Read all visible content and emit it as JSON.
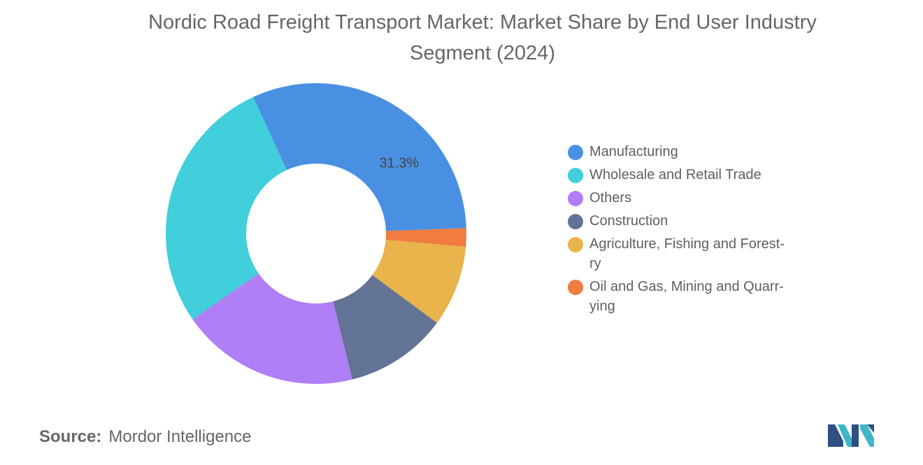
{
  "title": "Nordic Road Freight Transport Market: Market Share by End User Industry\nSegment (2024)",
  "source": {
    "label": "Source:",
    "value": "Mordor Intelligence"
  },
  "legend": [
    {
      "label": "Manufacturing",
      "color": "#4a90e2"
    },
    {
      "label": "Wholesale and Retail Trade",
      "color": "#40cfdb"
    },
    {
      "label": "Others",
      "color": "#b07ff7"
    },
    {
      "label": "Construction",
      "color": "#637396"
    },
    {
      "label": "Agriculture, Fishing and Forest-\nry",
      "color": "#e9b44c"
    },
    {
      "label": "Oil and Gas, Mining and Quarr-\nying",
      "color": "#f07c3f"
    }
  ],
  "chart_data": {
    "type": "pie",
    "donut": true,
    "title": "Nordic Road Freight Transport Market: Market Share by End User Industry Segment (2024)",
    "series": [
      {
        "name": "Manufacturing",
        "value": 31.3,
        "color": "#4a90e2",
        "label": "31.3%"
      },
      {
        "name": "Agriculture, Fishing and Forestry",
        "value": 8.7,
        "color": "#e9b44c"
      },
      {
        "name": "Oil and Gas, Mining and Quarrying",
        "value": 2.0,
        "color": "#f07c3f"
      },
      {
        "name": "Construction",
        "value": 11.0,
        "color": "#637396"
      },
      {
        "name": "Others",
        "value": 19.2,
        "color": "#b07ff7"
      },
      {
        "name": "Wholesale and Retail Trade",
        "value": 27.8,
        "color": "#40cfdb"
      }
    ],
    "slice_order": [
      "Manufacturing",
      "Oil and Gas, Mining and Quarrying",
      "Agriculture, Fishing and Forestry",
      "Construction",
      "Others",
      "Wholesale and Retail Trade"
    ],
    "legend_position": "right"
  }
}
